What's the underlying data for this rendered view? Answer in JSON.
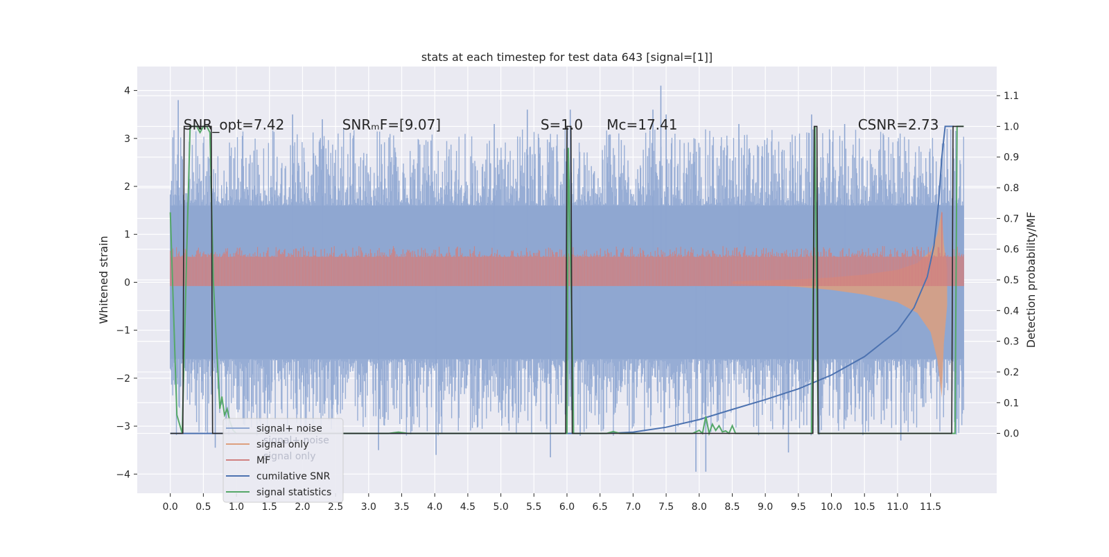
{
  "chart_data": {
    "type": "line",
    "title": "stats at each timestep for test data 643 [signal=[1]]",
    "xlabel": "",
    "ylabel": "Whitened strain",
    "ylabel_right": "Detection probability/MF",
    "xlim": [
      -0.5,
      12.5
    ],
    "ylim": [
      -4.4,
      4.5
    ],
    "ylim_right": [
      -0.195,
      1.195
    ],
    "x_ticks": [
      0.0,
      0.5,
      1.0,
      1.5,
      2.0,
      2.5,
      3.0,
      3.5,
      4.0,
      4.5,
      5.0,
      5.5,
      6.0,
      6.5,
      7.0,
      7.5,
      8.0,
      8.5,
      9.0,
      9.5,
      10.0,
      10.5,
      11.0,
      11.5
    ],
    "x_tick_labels": [
      "0.0",
      "0.5",
      "1.0",
      "1.5",
      "2.0",
      "2.5",
      "3.0",
      "3.5",
      "4.0",
      "4.5",
      "5.0",
      "5.5",
      "6.0",
      "6.5",
      "7.0",
      "7.5",
      "8.0",
      "8.5",
      "9.0",
      "9.5",
      "10.0",
      "10.5",
      "11.0",
      "11.5"
    ],
    "y_ticks": [
      -4,
      -3,
      -2,
      -1,
      0,
      1,
      2,
      3,
      4
    ],
    "y_tick_labels": [
      "−4",
      "−3",
      "−2",
      "−1",
      "0",
      "1",
      "2",
      "3",
      "4"
    ],
    "y_ticks_right": [
      0.0,
      0.1,
      0.2,
      0.3,
      0.4,
      0.5,
      0.6,
      0.7,
      0.8,
      0.9,
      1.0,
      1.1
    ],
    "y_tick_labels_right": [
      "0.0",
      "0.1",
      "0.2",
      "0.3",
      "0.4",
      "0.5",
      "0.6",
      "0.7",
      "0.8",
      "0.9",
      "1.0",
      "1.1"
    ],
    "grid": true,
    "legend_position": "lower-left",
    "annotations": [
      {
        "x": 0.2,
        "y": 3.3,
        "text": "SNR_opt=7.42"
      },
      {
        "x": 2.6,
        "y": 3.3,
        "text": "SNRₘF=[9.07]"
      },
      {
        "x": 5.6,
        "y": 3.3,
        "text": "S=1.0"
      },
      {
        "x": 6.6,
        "y": 3.3,
        "text": "Mᴄ=17.41"
      },
      {
        "x": 10.4,
        "y": 3.3,
        "text": "CSNR=2.73"
      }
    ],
    "series": [
      {
        "name": "signal+ noise",
        "color": "#8ea6d1",
        "axis": "left",
        "style": "noise-band",
        "x_range": [
          0.0,
          12.0
        ],
        "core": [
          -1.6,
          1.6
        ],
        "spike_extremes": {
          "x": [
            0.12,
            0.68,
            1.85,
            2.3,
            3.15,
            4.02,
            4.9,
            5.4,
            5.75,
            6.05,
            6.2,
            7.3,
            7.42,
            7.5,
            7.95,
            8.1,
            8.6,
            9.35,
            9.7,
            10.2,
            11.05,
            11.75,
            11.9
          ],
          "y": [
            3.8,
            -3.45,
            3.5,
            3.4,
            -3.5,
            -3.6,
            3.3,
            3.6,
            -3.65,
            3.6,
            -3.2,
            3.6,
            4.1,
            3.5,
            -3.95,
            -3.95,
            3.3,
            -3.55,
            3.5,
            3.3,
            -3.3,
            3.2,
            -2.85
          ]
        }
      },
      {
        "name": "signal only",
        "color": "#dd9f7e",
        "axis": "left",
        "style": "chirp",
        "x": [
          8.5,
          9.0,
          9.5,
          10.0,
          10.5,
          11.0,
          11.3,
          11.5,
          11.6,
          11.67,
          11.7,
          11.75
        ],
        "envelope": [
          0.02,
          0.04,
          0.06,
          0.1,
          0.16,
          0.26,
          0.4,
          0.65,
          1.0,
          1.5,
          0.8,
          0.3
        ]
      },
      {
        "name": "MF",
        "color": "#d08080",
        "axis": "right",
        "style": "noise-band",
        "x_range": [
          0.0,
          12.0
        ],
        "core": [
          0.48,
          0.575
        ],
        "peak": {
          "x": 11.67,
          "y": 0.72
        }
      },
      {
        "name": "cumilative SNR",
        "color": "#4c72b0",
        "axis": "right",
        "x": [
          0.0,
          6.6,
          7.0,
          7.5,
          8.0,
          8.5,
          9.0,
          9.5,
          10.0,
          10.5,
          11.0,
          11.25,
          11.45,
          11.55,
          11.62,
          11.67,
          11.72,
          11.8,
          11.85
        ],
        "y": [
          0.0,
          0.0,
          0.004,
          0.02,
          0.045,
          0.078,
          0.11,
          0.145,
          0.19,
          0.25,
          0.335,
          0.41,
          0.51,
          0.61,
          0.75,
          0.9,
          1.0,
          1.0,
          1.0
        ]
      },
      {
        "name": "signal statistics",
        "color": "#55a868",
        "axis": "right",
        "x": [
          0.0,
          0.1,
          0.18,
          0.25,
          0.3,
          0.4,
          0.45,
          0.5,
          0.55,
          0.6,
          0.65,
          0.7,
          0.75,
          0.78,
          0.82,
          0.86,
          0.9,
          0.95,
          1.0,
          3.3,
          3.45,
          3.6,
          6.0,
          6.02,
          6.08,
          6.1,
          6.6,
          6.7,
          6.8,
          7.9,
          8.0,
          8.05,
          8.1,
          8.15,
          8.2,
          8.25,
          8.3,
          8.35,
          8.4,
          8.45,
          8.5,
          8.55,
          8.6,
          9.7,
          9.75,
          9.8,
          9.85,
          9.9,
          10.3,
          11.85,
          11.87,
          11.9,
          11.95,
          12.0
        ],
        "y": [
          0.72,
          0.06,
          0.0,
          0.6,
          1.0,
          1.0,
          0.98,
          1.0,
          1.0,
          0.98,
          0.5,
          0.28,
          0.08,
          0.12,
          0.06,
          0.08,
          0.04,
          0.01,
          0.0,
          0.0,
          0.004,
          0.0,
          0.0,
          0.93,
          0.3,
          0.0,
          0.0,
          0.006,
          0.0,
          0.0,
          0.01,
          0.0,
          0.055,
          0.0,
          0.03,
          0.01,
          0.025,
          0.005,
          0.008,
          0.0,
          0.025,
          0.0,
          0.0,
          0.0,
          1.0,
          0.0,
          0.0,
          0.0,
          0.0,
          0.0,
          0.0,
          1.0,
          1.0,
          1.0
        ]
      },
      {
        "name": "",
        "color": "#2b2b2b",
        "axis": "right",
        "style": "pulse",
        "x": [
          0.0,
          0.19,
          0.21,
          0.62,
          0.64,
          5.98,
          6.0,
          6.06,
          6.08,
          9.72,
          9.74,
          9.78,
          9.8,
          11.82,
          11.84,
          12.0
        ],
        "y": [
          0.0,
          0.0,
          1.0,
          1.0,
          0.0,
          0.0,
          1.0,
          1.0,
          0.0,
          0.0,
          1.0,
          1.0,
          0.0,
          0.0,
          1.0,
          1.0
        ]
      }
    ],
    "legend_back_text": [
      "signal+ noise",
      "signal only"
    ]
  }
}
